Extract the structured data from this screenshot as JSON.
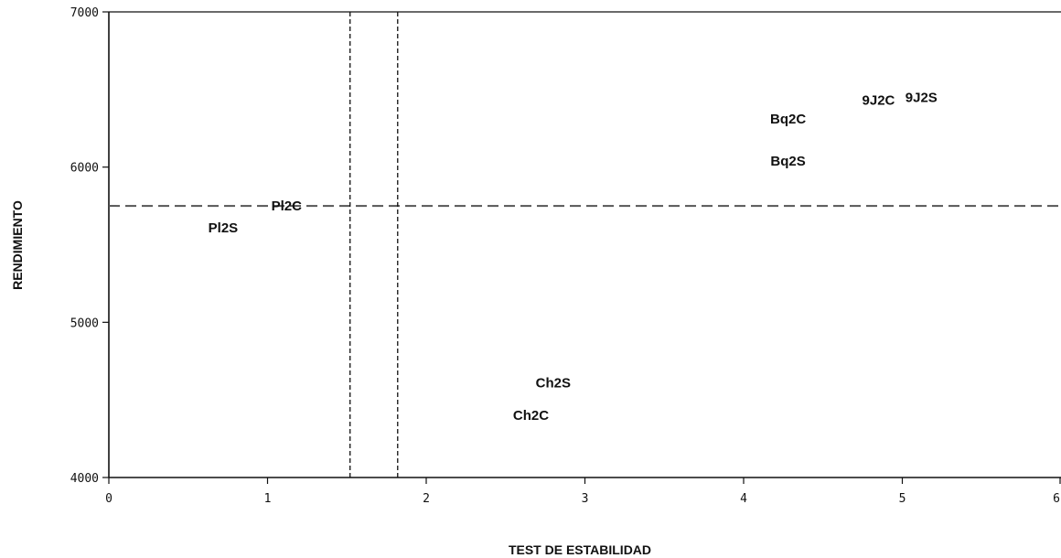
{
  "chart_data": {
    "type": "scatter",
    "title": "",
    "xlabel": "TEST DE ESTABILIDAD",
    "ylabel": "RENDIMIENTO",
    "xlim": [
      0,
      6
    ],
    "ylim": [
      4000,
      7000
    ],
    "x_ticks": [
      0,
      1,
      2,
      3,
      4,
      5,
      6
    ],
    "y_ticks": [
      4000,
      5000,
      6000,
      7000
    ],
    "x_tick_labels": [
      "0",
      "1",
      "2",
      "3",
      "4",
      "5",
      "6"
    ],
    "y_tick_labels": [
      "4000",
      "5000",
      "6000",
      "7000"
    ],
    "grid": false,
    "legend": "none",
    "points": [
      {
        "label": "9J2C",
        "x": 4.85,
        "y": 6430
      },
      {
        "label": "9J2S",
        "x": 5.12,
        "y": 6450
      },
      {
        "label": "Bq2C",
        "x": 4.28,
        "y": 6310
      },
      {
        "label": "Bq2S",
        "x": 4.28,
        "y": 6040
      },
      {
        "label": "Pl2C",
        "x": 1.12,
        "y": 5750
      },
      {
        "label": "Pl2S",
        "x": 0.72,
        "y": 5610
      },
      {
        "label": "Ch2S",
        "x": 2.8,
        "y": 4610
      },
      {
        "label": "Ch2C",
        "x": 2.66,
        "y": 4400
      }
    ],
    "reference_lines": [
      {
        "orientation": "horizontal",
        "value": 5750,
        "style": "dashed"
      },
      {
        "orientation": "vertical",
        "value": 1.52,
        "style": "dashed"
      },
      {
        "orientation": "vertical",
        "value": 1.82,
        "style": "dashed"
      }
    ],
    "colors": {
      "axis": "#111111",
      "text": "#111111",
      "reference": "#555555"
    }
  }
}
